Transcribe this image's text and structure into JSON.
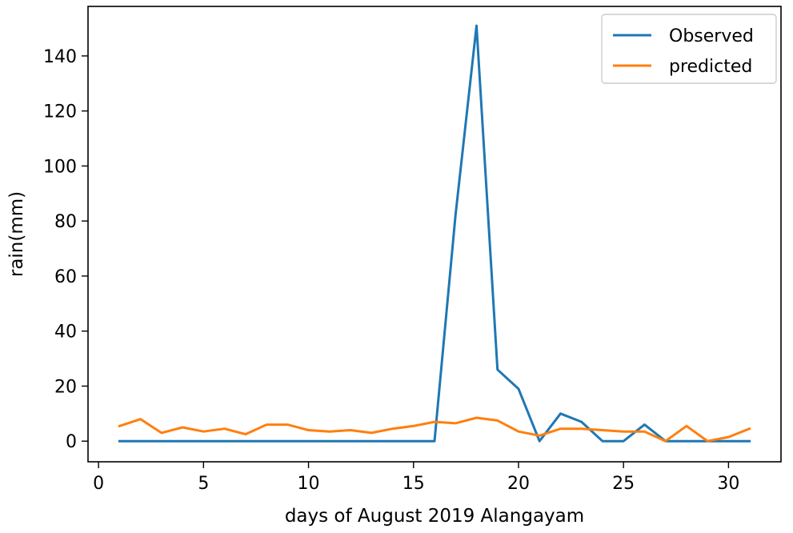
{
  "chart_data": {
    "type": "line",
    "title": "",
    "xlabel": "days of August 2019 Alangayam",
    "ylabel": "rain(mm)",
    "xlim": [
      -0.5,
      32.5
    ],
    "ylim": [
      -7.5,
      158
    ],
    "xticks": [
      0,
      5,
      10,
      15,
      20,
      25,
      30
    ],
    "yticks": [
      0,
      20,
      40,
      60,
      80,
      100,
      120,
      140
    ],
    "grid": false,
    "legend_position": "top-right",
    "x": [
      1,
      2,
      3,
      4,
      5,
      6,
      7,
      8,
      9,
      10,
      11,
      12,
      13,
      14,
      15,
      16,
      17,
      18,
      19,
      20,
      21,
      22,
      23,
      24,
      25,
      26,
      27,
      28,
      29,
      30,
      31
    ],
    "series": [
      {
        "name": "Observed",
        "color": "#1f77b4",
        "values": [
          0,
          0,
          0,
          0,
          0,
          0,
          0,
          0,
          0,
          0,
          0,
          0,
          0,
          0,
          0,
          0,
          82,
          151,
          26,
          19,
          0,
          10,
          7,
          0,
          0,
          6,
          0,
          0,
          0,
          0,
          0
        ]
      },
      {
        "name": "predicted",
        "color": "#ff7f0e",
        "values": [
          5.5,
          8,
          3,
          5,
          3.5,
          4.5,
          2.5,
          6,
          6,
          4,
          3.5,
          4,
          3,
          4.5,
          5.5,
          7,
          6.5,
          8.5,
          7.5,
          3.5,
          2,
          4.5,
          4.5,
          4,
          3.5,
          3.5,
          0,
          5.5,
          0,
          1.5,
          4.5
        ]
      }
    ]
  }
}
